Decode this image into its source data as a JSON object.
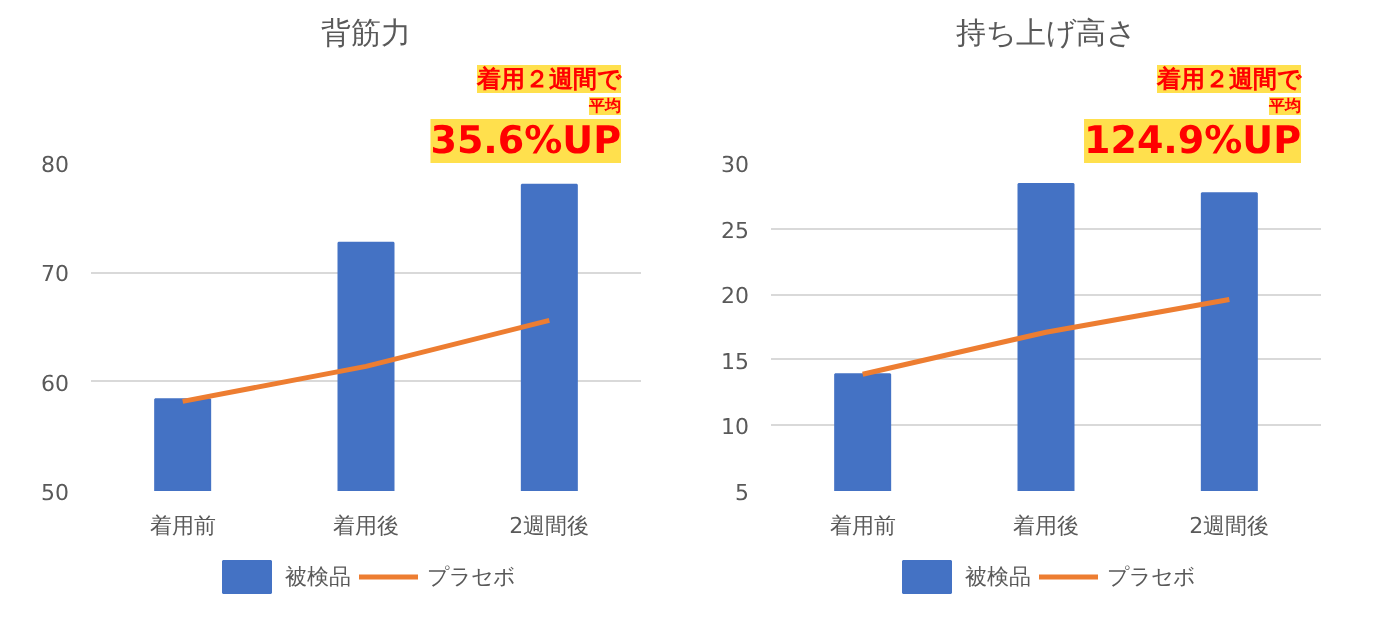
{
  "chart_data": [
    {
      "type": "bar",
      "title": "背筋力",
      "categories": [
        "着用前",
        "着用後",
        "2週間後"
      ],
      "series": [
        {
          "name": "被検品",
          "color": "#4472c4",
          "values": [
            58.4,
            72.7,
            78
          ]
        },
        {
          "name": "プラセボ",
          "type": "line",
          "color": "#ed7d31",
          "values": [
            58.2,
            61.4,
            65.6
          ]
        }
      ],
      "ylim": [
        50,
        80
      ],
      "yticks": [
        50,
        60,
        70,
        80
      ],
      "grid": "y",
      "legend": "bottom",
      "annotations": [
        "着用２週間で",
        "平均",
        "35.6%UP"
      ]
    },
    {
      "type": "bar",
      "title": "持ち上げ高さ",
      "categories": [
        "着用前",
        "着用後",
        "2週間後"
      ],
      "series": [
        {
          "name": "被検品",
          "color": "#4472c4",
          "values": [
            13.9,
            28.4,
            27.7
          ]
        },
        {
          "name": "プラセボ",
          "type": "line",
          "color": "#ed7d31",
          "values": [
            13.9,
            17.1,
            19.6
          ]
        }
      ],
      "ylim": [
        5,
        30
      ],
      "yticks": [
        5,
        10,
        15,
        20,
        25,
        30
      ],
      "grid": "y",
      "legend": "bottom",
      "annotations": [
        "着用２週間で",
        "平均",
        "124.9%UP"
      ]
    }
  ]
}
